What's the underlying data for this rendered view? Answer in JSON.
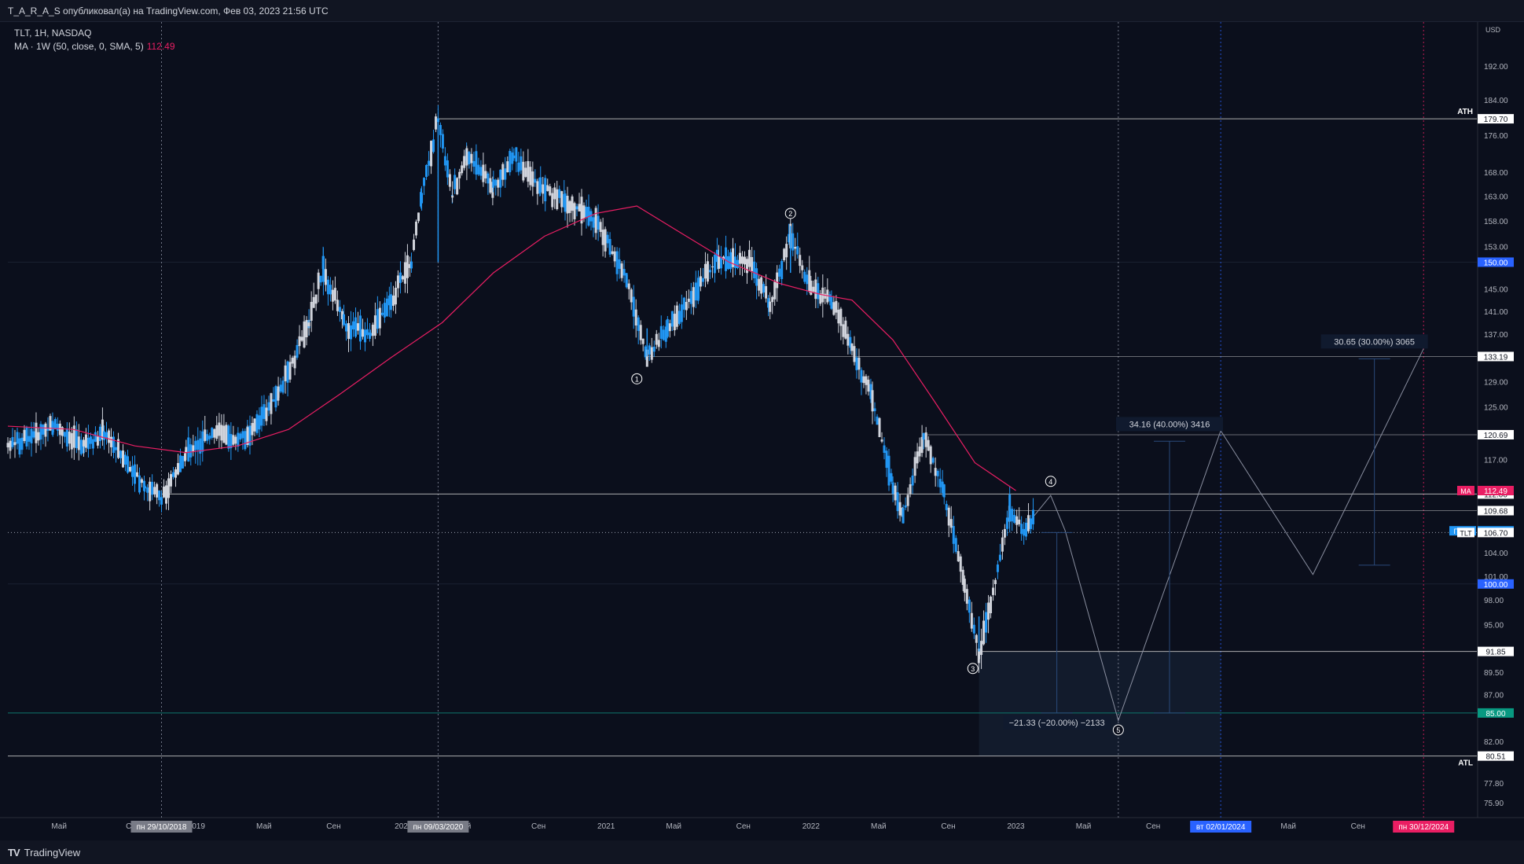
{
  "header": {
    "text": "T_A_R_A_S опубликовал(а) на TradingView.com, Фев 03, 2023 21:56 UTC"
  },
  "legend": {
    "symbol_line": "TLT, 1H, NASDAQ",
    "ma_line": "MA · 1W (50, close, 0, SMA, 5)",
    "ma_value": "112.49"
  },
  "footer": {
    "brand": "TradingView",
    "logo_mark": "TV"
  },
  "chart_data": {
    "type": "candlestick",
    "symbol": "TLT",
    "exchange": "NASDAQ",
    "interval": "1H",
    "currency": "USD",
    "scale": "log",
    "ylim": [
      74.5,
      203
    ],
    "xlim": [
      2018.08,
      2025.25
    ],
    "y_ticks": [
      "192.00",
      "184.00",
      "176.00",
      "168.00",
      "163.00",
      "158.00",
      "153.00",
      "145.00",
      "141.00",
      "137.00",
      "129.00",
      "125.00",
      "117.00",
      "104.00",
      "101.00",
      "98.00",
      "95.00",
      "89.50",
      "87.00",
      "82.00",
      "77.80",
      "75.90"
    ],
    "x_ticks": [
      {
        "t": 2018.33,
        "label": "Май"
      },
      {
        "t": 2018.67,
        "label": "С"
      },
      {
        "t": 2019.0,
        "label": "2019"
      },
      {
        "t": 2019.33,
        "label": "Май"
      },
      {
        "t": 2019.67,
        "label": "Сен"
      },
      {
        "t": 2020.0,
        "label": "202"
      },
      {
        "t": 2020.33,
        "label": "й"
      },
      {
        "t": 2020.67,
        "label": "Сен"
      },
      {
        "t": 2021.0,
        "label": "2021"
      },
      {
        "t": 2021.33,
        "label": "Май"
      },
      {
        "t": 2021.67,
        "label": "Сен"
      },
      {
        "t": 2022.0,
        "label": "2022"
      },
      {
        "t": 2022.33,
        "label": "Май"
      },
      {
        "t": 2022.67,
        "label": "Сен"
      },
      {
        "t": 2023.0,
        "label": "2023"
      },
      {
        "t": 2023.33,
        "label": "Май"
      },
      {
        "t": 2023.67,
        "label": "Сен"
      },
      {
        "t": 2024.33,
        "label": "Май"
      },
      {
        "t": 2024.67,
        "label": "Сен"
      },
      {
        "t": 2025.0,
        "label": "Май"
      }
    ],
    "axis_unit_label": "USD",
    "colors": {
      "up": "#d1d4dc",
      "down": "#2196f3",
      "ma": "#e91e63",
      "hline": "#c8c8c8"
    },
    "ohlc_path": [
      [
        2018.08,
        119
      ],
      [
        2018.3,
        122
      ],
      [
        2018.45,
        119
      ],
      [
        2018.55,
        121
      ],
      [
        2018.75,
        113
      ],
      [
        2018.83,
        111.5
      ],
      [
        2018.95,
        118
      ],
      [
        2019.1,
        121
      ],
      [
        2019.25,
        120
      ],
      [
        2019.4,
        127
      ],
      [
        2019.55,
        139
      ],
      [
        2019.62,
        149
      ],
      [
        2019.72,
        139
      ],
      [
        2019.85,
        137
      ],
      [
        2019.95,
        143
      ],
      [
        2020.05,
        150
      ],
      [
        2020.1,
        163
      ],
      [
        2020.18,
        179.7
      ],
      [
        2020.25,
        163
      ],
      [
        2020.32,
        172
      ],
      [
        2020.45,
        165
      ],
      [
        2020.55,
        171
      ],
      [
        2020.68,
        165
      ],
      [
        2020.8,
        162
      ],
      [
        2020.95,
        158
      ],
      [
        2021.1,
        147
      ],
      [
        2021.2,
        133.2
      ],
      [
        2021.3,
        138
      ],
      [
        2021.45,
        145
      ],
      [
        2021.55,
        151
      ],
      [
        2021.7,
        150
      ],
      [
        2021.8,
        142
      ],
      [
        2021.9,
        155
      ],
      [
        2022.0,
        145
      ],
      [
        2022.1,
        143
      ],
      [
        2022.2,
        135
      ],
      [
        2022.3,
        126
      ],
      [
        2022.4,
        113
      ],
      [
        2022.45,
        109
      ],
      [
        2022.55,
        120.7
      ],
      [
        2022.65,
        112
      ],
      [
        2022.75,
        100
      ],
      [
        2022.82,
        91.85
      ],
      [
        2022.9,
        100
      ],
      [
        2022.97,
        110
      ],
      [
        2023.05,
        106.7
      ],
      [
        2023.09,
        109
      ]
    ],
    "ma_series": [
      [
        2018.08,
        122
      ],
      [
        2018.4,
        121.5
      ],
      [
        2018.7,
        119
      ],
      [
        2018.95,
        118
      ],
      [
        2019.2,
        119
      ],
      [
        2019.45,
        121.5
      ],
      [
        2019.7,
        127
      ],
      [
        2019.95,
        133
      ],
      [
        2020.2,
        139
      ],
      [
        2020.45,
        148
      ],
      [
        2020.7,
        155
      ],
      [
        2020.95,
        159.5
      ],
      [
        2021.15,
        161
      ],
      [
        2021.35,
        156
      ],
      [
        2021.6,
        150
      ],
      [
        2021.85,
        146
      ],
      [
        2022.05,
        144
      ],
      [
        2022.2,
        143
      ],
      [
        2022.4,
        136
      ],
      [
        2022.6,
        126
      ],
      [
        2022.8,
        116.5
      ],
      [
        2023.0,
        112.49
      ]
    ],
    "horizontal_lines": [
      {
        "y": 179.7,
        "label": "179.70",
        "tag": "ATH",
        "x_start": 2020.18
      },
      {
        "y": 133.19,
        "label": "133.19",
        "x_start": 2021.2
      },
      {
        "y": 120.69,
        "label": "120.69",
        "x_start": 2022.55
      },
      {
        "y": 112.0,
        "label": "112.00",
        "x_start": 2018.83
      },
      {
        "y": 109.68,
        "label": "109.68",
        "x_start": 2022.97
      },
      {
        "y": 91.85,
        "label": "91.85",
        "x_start": 2022.82
      },
      {
        "y": 80.51,
        "label": "80.51",
        "tag": "ATL",
        "x_start": 2018.08
      }
    ],
    "level_lines": [
      {
        "y": 150.0,
        "label": "150.00",
        "color": "#2962ff"
      },
      {
        "y": 100.0,
        "label": "100.00",
        "color": "#2962ff"
      },
      {
        "y": 85.0,
        "label": "85.00",
        "color": "#089981"
      }
    ],
    "ma_marker": {
      "y": 112.49,
      "tag": "MA",
      "label": "112.49",
      "color": "#e91e63"
    },
    "last_price": {
      "y": 106.93,
      "tag": "Пост-",
      "label": "106.93",
      "color": "#2196f3"
    },
    "symbol_price": {
      "y": 106.7,
      "tag": "TLT",
      "label": "106.70"
    },
    "vertical_lines": [
      {
        "t": 2018.83,
        "style": "dotted",
        "color": "#8a8fa0",
        "label": "пн 29/10/2018",
        "label_bg": "#787b86"
      },
      {
        "t": 2020.18,
        "style": "dotted",
        "color": "#8a8fa0",
        "label": "пн 09/03/2020",
        "label_bg": "#787b86"
      },
      {
        "t": 2023.5,
        "style": "dotted",
        "color": "#8a8fa0"
      },
      {
        "t": 2024.0,
        "style": "dotted",
        "color": "#2962ff",
        "label": "вт 02/01/2024",
        "label_bg": "#2962ff"
      },
      {
        "t": 2024.99,
        "style": "dotted",
        "color": "#e91e63",
        "label": "пн 30/12/2024",
        "label_bg": "#e91e63"
      }
    ],
    "wave_labels": [
      {
        "t": 2021.15,
        "y": 129.5,
        "label": "1"
      },
      {
        "t": 2021.9,
        "y": 159.5,
        "label": "2"
      },
      {
        "t": 2022.79,
        "y": 89.9,
        "label": "3"
      },
      {
        "t": 2023.17,
        "y": 113.8,
        "label": "4"
      },
      {
        "t": 2023.5,
        "y": 83.2,
        "label": "5"
      }
    ],
    "projection_path": [
      [
        2023.09,
        109
      ],
      [
        2023.17,
        111.8
      ],
      [
        2023.24,
        107
      ],
      [
        2023.5,
        84.2
      ],
      [
        2024.0,
        121.3
      ],
      [
        2024.45,
        101.2
      ],
      [
        2024.99,
        134.5
      ]
    ],
    "measure_boxes": [
      {
        "t1": 2022.82,
        "t2": 2024.0,
        "y1": 80.51,
        "y2": 91.85
      }
    ],
    "measurements": [
      {
        "t": 2023.2,
        "y_from": 106.7,
        "y_to": 85.0,
        "label": "−21.33 (−20.00%) −2133",
        "label_t": 2023.2,
        "label_y": 83.9
      },
      {
        "t": 2023.75,
        "y_from": 85.0,
        "y_to": 119.7,
        "label": "34.16 (40.00%) 3416",
        "label_t": 2023.75,
        "label_y": 122.2
      },
      {
        "t": 2024.75,
        "y_from": 102.4,
        "y_to": 132.8,
        "label": "30.65 (30.00%) 3065",
        "label_t": 2024.75,
        "label_y": 135.6
      }
    ]
  }
}
